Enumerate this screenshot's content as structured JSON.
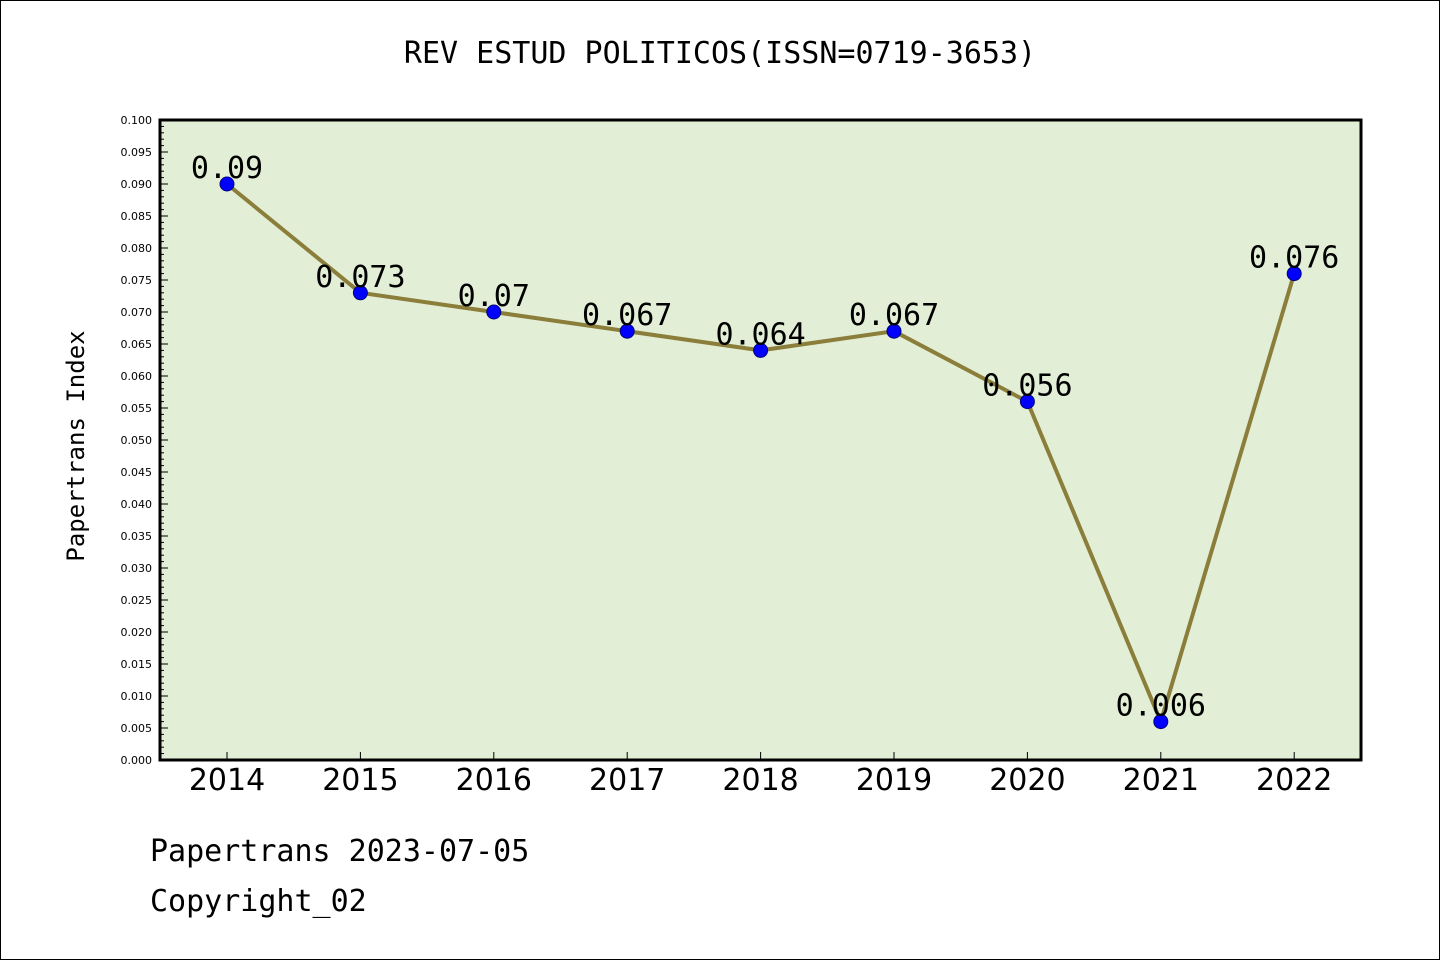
{
  "chart_data": {
    "type": "line",
    "title": "REV ESTUD POLITICOS(ISSN=0719-3653)",
    "xlabel": "",
    "ylabel": "Papertrans Index",
    "categories": [
      "2014",
      "2015",
      "2016",
      "2017",
      "2018",
      "2019",
      "2020",
      "2021",
      "2022"
    ],
    "series": [
      {
        "values": [
          0.09,
          0.073,
          0.07,
          0.067,
          0.064,
          0.067,
          0.056,
          0.006,
          0.076
        ],
        "data_labels": [
          "0.09",
          "0.073",
          "0.07",
          "0.067",
          "0.064",
          "0.067",
          "0.056",
          "0.006",
          "0.076"
        ]
      }
    ],
    "ylim": [
      0,
      0.1
    ],
    "y_major_ticks": [
      "0.000",
      "0.005",
      "0.010",
      "0.015",
      "0.020",
      "0.025",
      "0.030",
      "0.035",
      "0.040",
      "0.045",
      "0.050",
      "0.055",
      "0.060",
      "0.065",
      "0.070",
      "0.075",
      "0.080",
      "0.085",
      "0.090",
      "0.095",
      "0.100"
    ],
    "grid": false,
    "legend": "none",
    "colors": {
      "plot_background": "#e2efd6",
      "line": "#8b7d3a",
      "marker": "#0000ff",
      "marker_edge": "#00007a"
    }
  },
  "footer": {
    "date_line": "Papertrans 2023-07-05",
    "copyright_line": "Copyright_02"
  }
}
